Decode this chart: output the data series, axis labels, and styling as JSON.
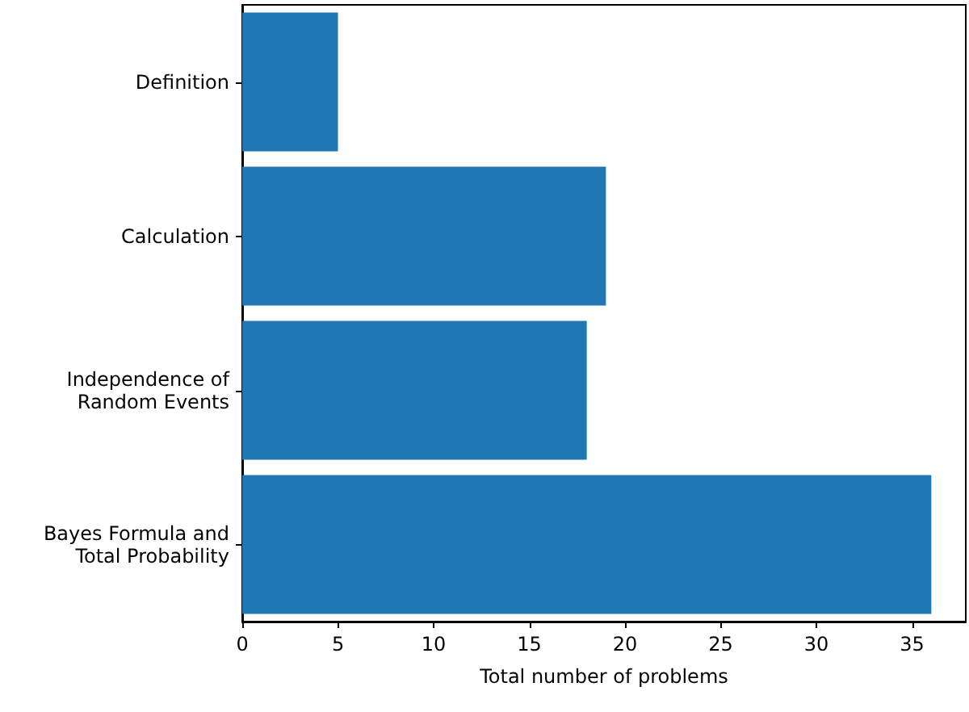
{
  "chart_data": {
    "type": "bar",
    "orientation": "horizontal",
    "xlabel": "Total number of problems",
    "categories": [
      "Definition",
      "Calculation",
      "Independence of\nRandom Events",
      "Bayes Formula and\nTotal Probability"
    ],
    "values": [
      5,
      19,
      18,
      36
    ],
    "color": "#1f77b4",
    "xlim": [
      0,
      37.8
    ],
    "xticks": [
      0,
      5,
      10,
      15,
      20,
      25,
      30,
      35
    ],
    "grid": false
  }
}
